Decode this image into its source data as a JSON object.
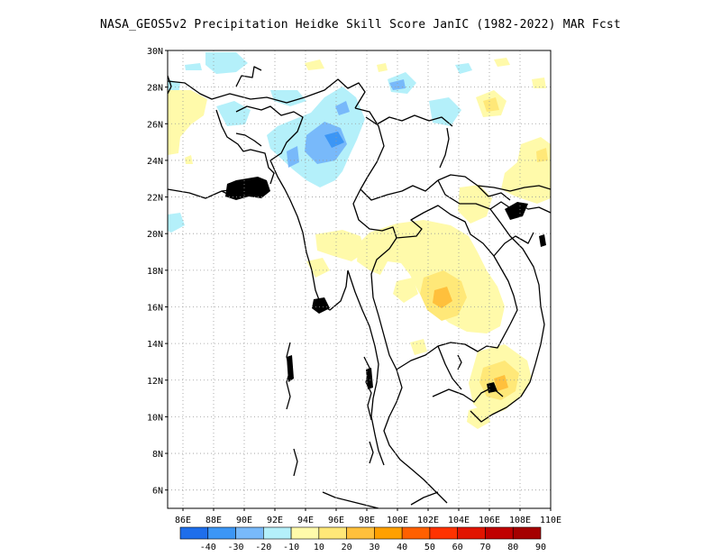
{
  "title": "NASA_GEOS5v2  Precipitation Heidke Skill Score JanIC (1982-2022) MAR Fcst",
  "map": {
    "lon_range": [
      85,
      110
    ],
    "lat_range": [
      5,
      30
    ],
    "lat_ticks": [
      "6N",
      "8N",
      "10N",
      "12N",
      "14N",
      "16N",
      "18N",
      "20N",
      "22N",
      "24N",
      "26N",
      "28N",
      "30N"
    ],
    "lon_ticks": [
      "86E",
      "88E",
      "90E",
      "92E",
      "94E",
      "96E",
      "98E",
      "100E",
      "102E",
      "104E",
      "106E",
      "108E",
      "110E"
    ],
    "grid": "dotted"
  },
  "colorbar": {
    "colors": [
      "#1e6eeb",
      "#3c96f5",
      "#78b9fa",
      "#b4f0fa",
      "#fffaaa",
      "#ffe878",
      "#ffc03c",
      "#ffa000",
      "#ff6000",
      "#ff3200",
      "#e11400",
      "#c00000",
      "#a50000"
    ],
    "labels": [
      "-40",
      "-30",
      "-20",
      "-10",
      "10",
      "20",
      "30",
      "40",
      "50",
      "60",
      "70",
      "80",
      "90"
    ]
  }
}
